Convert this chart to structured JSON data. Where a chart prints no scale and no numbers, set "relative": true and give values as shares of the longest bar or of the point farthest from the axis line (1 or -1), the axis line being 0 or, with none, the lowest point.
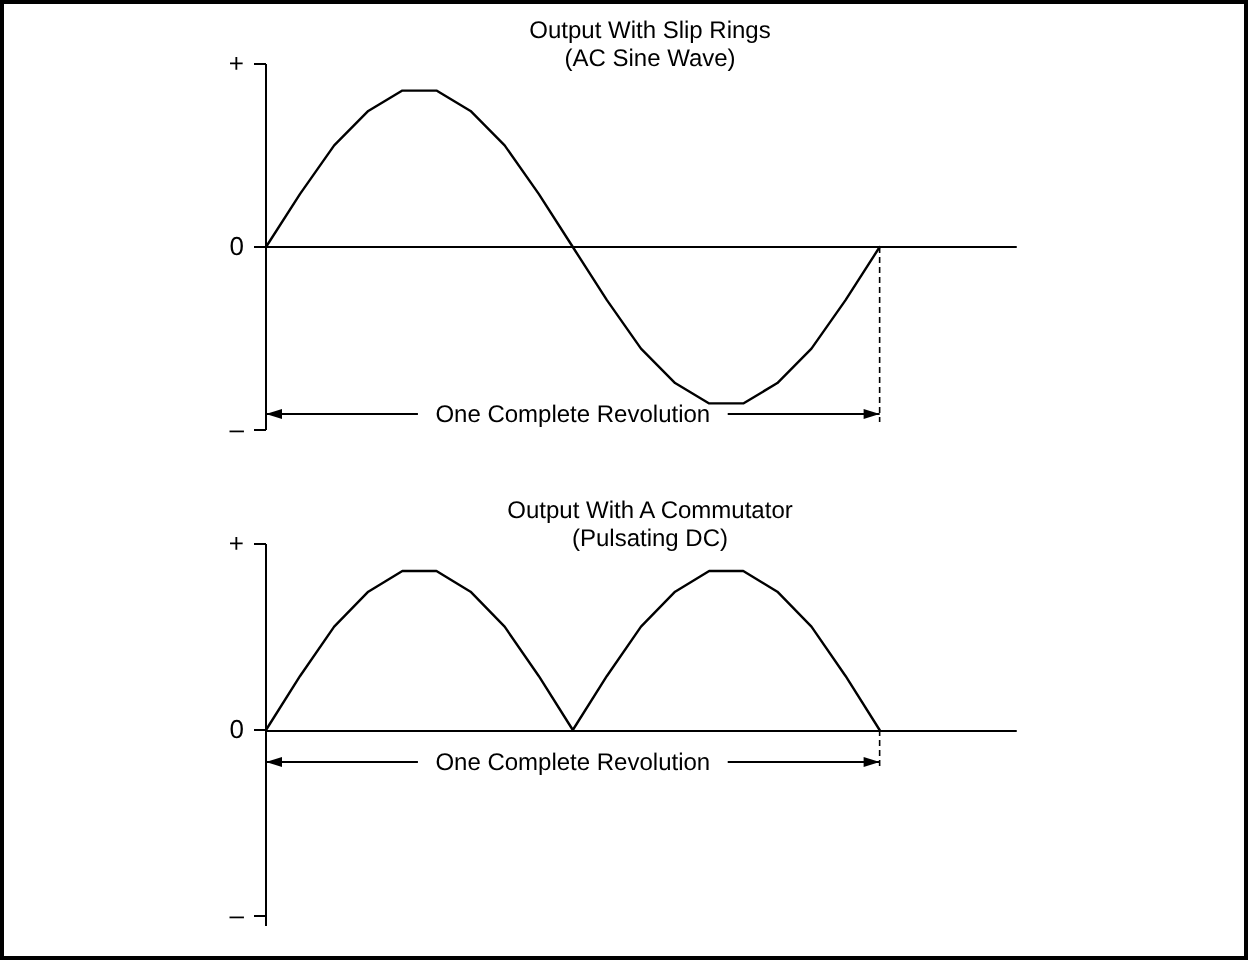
{
  "chart_data": [
    {
      "type": "line",
      "title": "Output With Slip Rings",
      "subtitle": "(AC Sine Wave)",
      "categories": [
        null,
        null,
        null,
        null,
        null,
        null,
        null,
        null,
        null,
        null,
        null,
        null,
        null,
        null,
        null,
        null,
        null,
        null,
        null,
        null,
        null,
        null,
        null
      ],
      "series": [
        {
          "color": "#000000",
          "values": [
            0,
            0.34,
            0.65,
            0.87,
            1,
            1,
            0.87,
            0.65,
            0.34,
            0,
            -0.34,
            -0.65,
            -0.87,
            -1,
            -1,
            -0.87,
            -0.65,
            -0.34,
            0,
            null,
            null,
            null,
            null
          ]
        }
      ],
      "relative": true,
      "grid": false,
      "marker": "none",
      "line_style": "solid",
      "annotations": [
        "+",
        "0",
        "–",
        "One Complete Revolution"
      ]
    },
    {
      "type": "line",
      "title": "Output With A Commutator",
      "subtitle": "(Pulsating DC)",
      "categories": [
        null,
        null,
        null,
        null,
        null,
        null,
        null,
        null,
        null,
        null,
        null,
        null,
        null,
        null,
        null,
        null,
        null,
        null,
        null,
        null,
        null,
        null,
        null
      ],
      "series": [
        {
          "color": "#000000",
          "values": [
            0,
            0.34,
            0.65,
            0.87,
            1,
            1,
            0.87,
            0.65,
            0.34,
            0,
            0.34,
            0.65,
            0.87,
            1,
            1,
            0.87,
            0.65,
            0.34,
            0,
            null,
            null,
            null,
            null
          ]
        }
      ],
      "relative": true,
      "grid": false,
      "marker": "none",
      "line_style": "solid",
      "annotations": [
        "+",
        "0",
        "–",
        "One Complete Revolution"
      ]
    }
  ]
}
